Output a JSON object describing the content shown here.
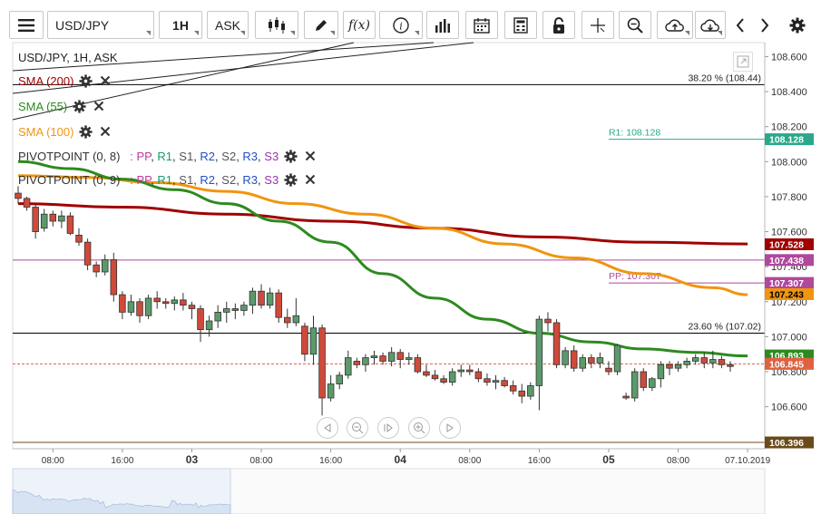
{
  "toolbar": {
    "symbol": "USD/JPY",
    "timeframe": "1H",
    "price_type": "ASK",
    "fx_label": "f(x)",
    "icons": [
      "menu-icon",
      "candlestick-icon",
      "draw-pencil-icon",
      "function-icon",
      "info-icon",
      "bar-chart-icon",
      "calendar-icon",
      "calculator-icon",
      "lock-icon",
      "crosshair-icon",
      "zoom-icon",
      "cloud-upload-icon",
      "cloud-download-icon",
      "chevron-left-icon",
      "chevron-right-icon",
      "gear-icon"
    ]
  },
  "chart_title": "USD/JPY, 1H, ASK",
  "indicators": [
    {
      "name": "SMA (200)",
      "color": "#a00000"
    },
    {
      "name": "SMA (55)",
      "color": "#2d8a1f"
    },
    {
      "name": "SMA (100)",
      "color": "#f0950f"
    }
  ],
  "pivots": [
    {
      "name": "PIVOTPOINT (0, 8)",
      "params": [
        {
          "t": "PP",
          "c": "#c0399f"
        },
        {
          "t": "R1",
          "c": "#1a9a6a"
        },
        {
          "t": "S1",
          "c": "#555"
        },
        {
          "t": "R2",
          "c": "#2050c0"
        },
        {
          "t": "S2",
          "c": "#555"
        },
        {
          "t": "R3",
          "c": "#2050c0"
        },
        {
          "t": "S3",
          "c": "#9b30b0"
        }
      ]
    },
    {
      "name": "PIVOTPOINT (0, 9)",
      "params": [
        {
          "t": "PP",
          "c": "#c0399f"
        },
        {
          "t": "R1",
          "c": "#1a9a6a"
        },
        {
          "t": "S1",
          "c": "#555"
        },
        {
          "t": "R2",
          "c": "#2050c0"
        },
        {
          "t": "S2",
          "c": "#555"
        },
        {
          "t": "R3",
          "c": "#2050c0"
        },
        {
          "t": "S3",
          "c": "#9b30b0"
        }
      ]
    }
  ],
  "chart_data": {
    "type": "candlestick",
    "y_axis_ticks": [
      "108.600",
      "108.400",
      "108.200",
      "108.000",
      "107.800",
      "107.600",
      "107.400",
      "107.200",
      "107.000",
      "106.800",
      "106.600"
    ],
    "x_axis_ticks": [
      {
        "label": "08:00",
        "i": 4,
        "bold": false
      },
      {
        "label": "16:00",
        "i": 12,
        "bold": false
      },
      {
        "label": "03",
        "i": 20,
        "bold": true
      },
      {
        "label": "08:00",
        "i": 28,
        "bold": false
      },
      {
        "label": "16:00",
        "i": 36,
        "bold": false
      },
      {
        "label": "04",
        "i": 44,
        "bold": true
      },
      {
        "label": "08:00",
        "i": 52,
        "bold": false
      },
      {
        "label": "16:00",
        "i": 60,
        "bold": false
      },
      {
        "label": "05",
        "i": 68,
        "bold": true
      },
      {
        "label": "08:00",
        "i": 76,
        "bold": false
      },
      {
        "label": "07.10.2019",
        "i": 84,
        "bold": false
      }
    ],
    "ylim": [
      106.36,
      108.68
    ],
    "candles": [
      [
        107.82,
        107.86,
        107.76,
        107.79
      ],
      [
        107.79,
        107.8,
        107.72,
        107.74
      ],
      [
        107.74,
        107.76,
        107.56,
        107.6
      ],
      [
        107.62,
        107.73,
        107.6,
        107.7
      ],
      [
        107.7,
        107.72,
        107.63,
        107.66
      ],
      [
        107.66,
        107.72,
        107.62,
        107.69
      ],
      [
        107.69,
        107.71,
        107.58,
        107.59
      ],
      [
        107.58,
        107.62,
        107.52,
        107.54
      ],
      [
        107.54,
        107.56,
        107.38,
        107.41
      ],
      [
        107.41,
        107.43,
        107.34,
        107.37
      ],
      [
        107.37,
        107.47,
        107.35,
        107.44
      ],
      [
        107.44,
        107.48,
        107.2,
        107.24
      ],
      [
        107.24,
        107.26,
        107.1,
        107.14
      ],
      [
        107.14,
        107.24,
        107.12,
        107.2
      ],
      [
        107.2,
        107.22,
        107.08,
        107.12
      ],
      [
        107.12,
        107.24,
        107.1,
        107.22
      ],
      [
        107.22,
        107.26,
        107.16,
        107.2
      ],
      [
        107.2,
        107.22,
        107.16,
        107.19
      ],
      [
        107.19,
        107.23,
        107.15,
        107.21
      ],
      [
        107.21,
        107.25,
        107.15,
        107.18
      ],
      [
        107.18,
        107.2,
        107.1,
        107.16
      ],
      [
        107.16,
        107.18,
        106.97,
        107.04
      ],
      [
        107.04,
        107.12,
        107.0,
        107.09
      ],
      [
        107.09,
        107.18,
        107.05,
        107.14
      ],
      [
        107.14,
        107.2,
        107.08,
        107.16
      ],
      [
        107.16,
        107.19,
        107.1,
        107.15
      ],
      [
        107.15,
        107.2,
        107.12,
        107.18
      ],
      [
        107.18,
        107.28,
        107.13,
        107.26
      ],
      [
        107.26,
        107.3,
        107.16,
        107.18
      ],
      [
        107.18,
        107.28,
        107.16,
        107.25
      ],
      [
        107.25,
        107.27,
        107.08,
        107.11
      ],
      [
        107.11,
        107.16,
        107.05,
        107.08
      ],
      [
        107.08,
        107.22,
        107.06,
        107.12
      ],
      [
        107.06,
        107.08,
        106.86,
        106.9
      ],
      [
        106.9,
        107.12,
        106.84,
        107.05
      ],
      [
        107.05,
        107.07,
        106.55,
        106.65
      ],
      [
        106.65,
        106.78,
        106.63,
        106.73
      ],
      [
        106.73,
        106.8,
        106.7,
        106.78
      ],
      [
        106.78,
        106.92,
        106.76,
        106.88
      ],
      [
        106.86,
        106.88,
        106.82,
        106.84
      ],
      [
        106.84,
        106.9,
        106.8,
        106.88
      ],
      [
        106.88,
        106.92,
        106.84,
        106.89
      ],
      [
        106.89,
        106.91,
        106.84,
        106.86
      ],
      [
        106.86,
        106.94,
        106.83,
        106.91
      ],
      [
        106.91,
        106.93,
        106.82,
        106.87
      ],
      [
        106.87,
        106.91,
        106.84,
        106.88
      ],
      [
        106.88,
        106.9,
        106.79,
        106.8
      ],
      [
        106.8,
        106.84,
        106.77,
        106.78
      ],
      [
        106.78,
        106.81,
        106.75,
        106.76
      ],
      [
        106.76,
        106.78,
        106.73,
        106.74
      ],
      [
        106.74,
        106.82,
        106.72,
        106.8
      ],
      [
        106.8,
        106.84,
        106.77,
        106.81
      ],
      [
        106.81,
        106.84,
        106.78,
        106.8
      ],
      [
        106.8,
        106.82,
        106.74,
        106.76
      ],
      [
        106.76,
        106.79,
        106.72,
        106.74
      ],
      [
        106.74,
        106.78,
        106.7,
        106.75
      ],
      [
        106.75,
        106.77,
        106.71,
        106.72
      ],
      [
        106.72,
        106.75,
        106.67,
        106.69
      ],
      [
        106.69,
        106.73,
        106.62,
        106.66
      ],
      [
        106.66,
        106.74,
        106.64,
        106.72
      ],
      [
        106.72,
        107.12,
        106.58,
        107.1
      ],
      [
        107.1,
        107.14,
        107.03,
        107.08
      ],
      [
        107.08,
        107.1,
        106.82,
        106.84
      ],
      [
        106.84,
        106.94,
        106.82,
        106.92
      ],
      [
        106.92,
        106.95,
        106.8,
        106.82
      ],
      [
        106.82,
        106.9,
        106.8,
        106.88
      ],
      [
        106.88,
        106.9,
        106.82,
        106.85
      ],
      [
        106.85,
        106.91,
        106.82,
        106.88
      ],
      [
        106.82,
        106.86,
        106.78,
        106.8
      ],
      [
        106.8,
        106.96,
        106.78,
        106.95
      ],
      [
        106.66,
        106.68,
        106.64,
        106.65
      ],
      [
        106.65,
        106.82,
        106.63,
        106.8
      ],
      [
        106.8,
        106.82,
        106.69,
        106.71
      ],
      [
        106.71,
        106.77,
        106.69,
        106.76
      ],
      [
        106.76,
        106.86,
        106.71,
        106.84
      ],
      [
        106.84,
        106.86,
        106.78,
        106.82
      ],
      [
        106.82,
        106.86,
        106.8,
        106.84
      ],
      [
        106.84,
        106.88,
        106.82,
        106.86
      ],
      [
        106.86,
        106.9,
        106.84,
        106.88
      ],
      [
        106.88,
        106.91,
        106.82,
        106.85
      ],
      [
        106.85,
        106.92,
        106.82,
        106.87
      ],
      [
        106.87,
        106.89,
        106.82,
        106.84
      ],
      [
        106.84,
        106.86,
        106.8,
        106.83
      ]
    ],
    "sma55": [
      [
        0,
        108.0
      ],
      [
        6,
        107.96
      ],
      [
        12,
        107.9
      ],
      [
        18,
        107.84
      ],
      [
        24,
        107.76
      ],
      [
        30,
        107.66
      ],
      [
        36,
        107.54
      ],
      [
        42,
        107.36
      ],
      [
        48,
        107.22
      ],
      [
        54,
        107.1
      ],
      [
        60,
        107.02
      ],
      [
        66,
        106.97
      ],
      [
        72,
        106.93
      ],
      [
        78,
        106.91
      ],
      [
        84,
        106.89
      ]
    ],
    "sma100": [
      [
        0,
        107.92
      ],
      [
        8,
        107.91
      ],
      [
        16,
        107.88
      ],
      [
        24,
        107.83
      ],
      [
        32,
        107.76
      ],
      [
        40,
        107.7
      ],
      [
        48,
        107.62
      ],
      [
        56,
        107.53
      ],
      [
        64,
        107.45
      ],
      [
        72,
        107.36
      ],
      [
        80,
        107.28
      ],
      [
        84,
        107.24
      ]
    ],
    "sma200": [
      [
        0,
        107.76
      ],
      [
        12,
        107.74
      ],
      [
        24,
        107.7
      ],
      [
        36,
        107.66
      ],
      [
        48,
        107.62
      ],
      [
        60,
        107.57
      ],
      [
        72,
        107.54
      ],
      [
        84,
        107.53
      ]
    ],
    "hlines": [
      {
        "price": 108.44,
        "label": "38.20 % (108.44)",
        "color": "#000",
        "style": "solid"
      },
      {
        "price": 108.128,
        "label": "R1: 108.128",
        "color": "#2aa88a",
        "style": "solid",
        "from_i": 68
      },
      {
        "price": 107.438,
        "label": "",
        "color": "#b0489c",
        "style": "solid"
      },
      {
        "price": 107.307,
        "label": "PP: 107.307",
        "color": "#b0489c",
        "style": "solid",
        "from_i": 68
      },
      {
        "price": 107.02,
        "label": "23.60 % (107.02)",
        "color": "#000",
        "style": "solid"
      },
      {
        "price": 106.845,
        "label": "",
        "color": "#e06040",
        "style": "dashed"
      },
      {
        "price": 106.396,
        "label": "",
        "color": "#6b4a1a",
        "style": "solid"
      }
    ],
    "price_tags": [
      {
        "price": 108.128,
        "text": "108.128",
        "bg": "#2aa88a",
        "fg": "#fff"
      },
      {
        "price": 107.528,
        "text": "107.528",
        "bg": "#a00000",
        "fg": "#fff"
      },
      {
        "price": 107.438,
        "text": "107.438",
        "bg": "#b0489c",
        "fg": "#fff"
      },
      {
        "price": 107.307,
        "text": "107.307",
        "bg": "#b0489c",
        "fg": "#fff"
      },
      {
        "price": 107.243,
        "text": "107.243",
        "bg": "#f0950f",
        "fg": "#000"
      },
      {
        "price": 106.893,
        "text": "106.893",
        "bg": "#2d8a1f",
        "fg": "#fff"
      },
      {
        "price": 106.845,
        "text": "106.845",
        "bg": "#e06040",
        "fg": "#fff"
      },
      {
        "price": 106.396,
        "text": "106.396",
        "bg": "#6b4a1a",
        "fg": "#fff"
      }
    ],
    "colors": {
      "bull": "#5b9a6b",
      "bear": "#cf4a3a",
      "grid": "#e8e8e8"
    }
  }
}
